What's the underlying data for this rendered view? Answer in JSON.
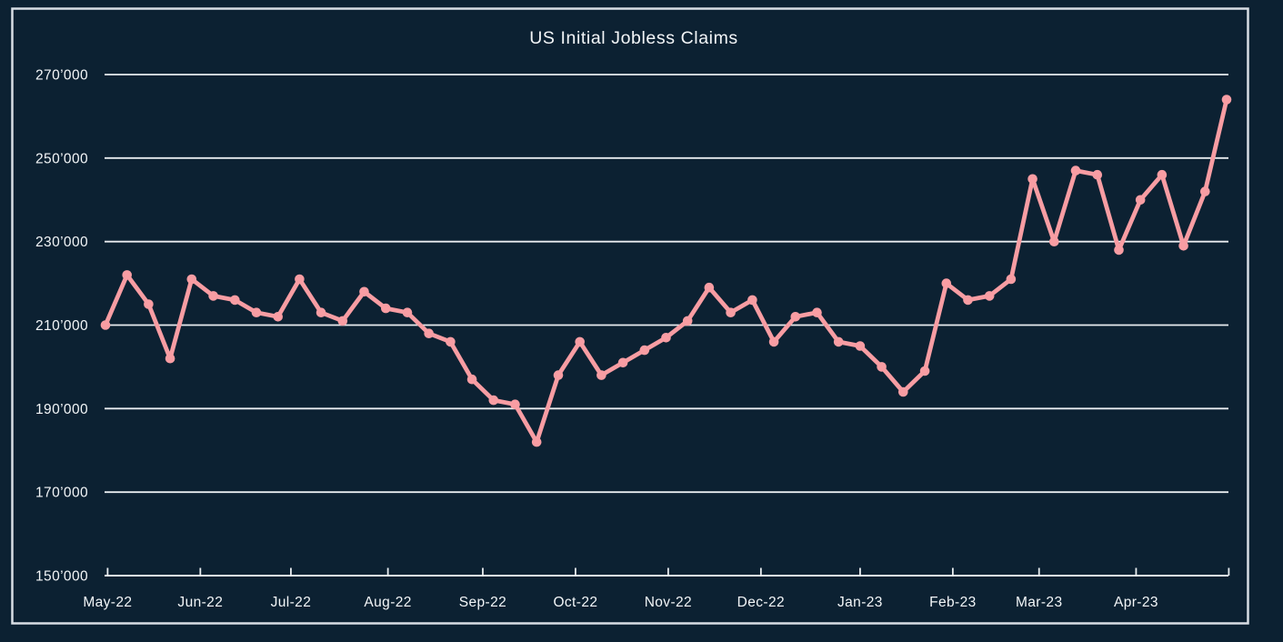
{
  "chart_data": {
    "type": "line",
    "title": "US Initial Jobless Claims",
    "series": [
      {
        "name": "US Initial Jobless Claims",
        "values": [
          210000,
          222000,
          215000,
          202000,
          221000,
          217000,
          216000,
          213000,
          212000,
          221000,
          213000,
          211000,
          218000,
          214000,
          213000,
          208000,
          206000,
          197000,
          192000,
          191000,
          182000,
          198000,
          206000,
          198000,
          201000,
          204000,
          207000,
          211000,
          219000,
          213000,
          216000,
          206000,
          212000,
          213000,
          206000,
          205000,
          200000,
          194000,
          199000,
          220000,
          216000,
          217000,
          221000,
          245000,
          230000,
          247000,
          246000,
          228000,
          240000,
          246000,
          229000,
          242000,
          264000
        ]
      }
    ],
    "x_unit": "week",
    "x_tick_labels": [
      "May-22",
      "Jun-22",
      "Jul-22",
      "Aug-22",
      "Sep-22",
      "Oct-22",
      "Nov-22",
      "Dec-22",
      "Jan-23",
      "Feb-23",
      "Mar-23",
      "Apr-23"
    ],
    "x_tick_week_positions": [
      0.1,
      4.4,
      8.6,
      13.1,
      17.5,
      21.8,
      26.1,
      30.4,
      35.0,
      39.3,
      43.3,
      47.8
    ],
    "x_axis_start_week": 0.1,
    "x_axis_end_week": 52.1,
    "y_tick_values": [
      150000,
      170000,
      190000,
      210000,
      230000,
      250000,
      270000
    ],
    "y_tick_labels": [
      "150’000",
      "170’000",
      "190’000",
      "210’000",
      "230’000",
      "250’000",
      "270’000"
    ],
    "ylim": [
      150000,
      270000
    ],
    "grid": "horizontal",
    "legend": "none",
    "marker": "circle"
  },
  "colors": {
    "background": "#0C2132",
    "line": "#F89DA3",
    "grid": "#E9EDF0",
    "axis": "#E9EDF0",
    "text": "#F3F6F8",
    "border": "#D8DEE4"
  }
}
